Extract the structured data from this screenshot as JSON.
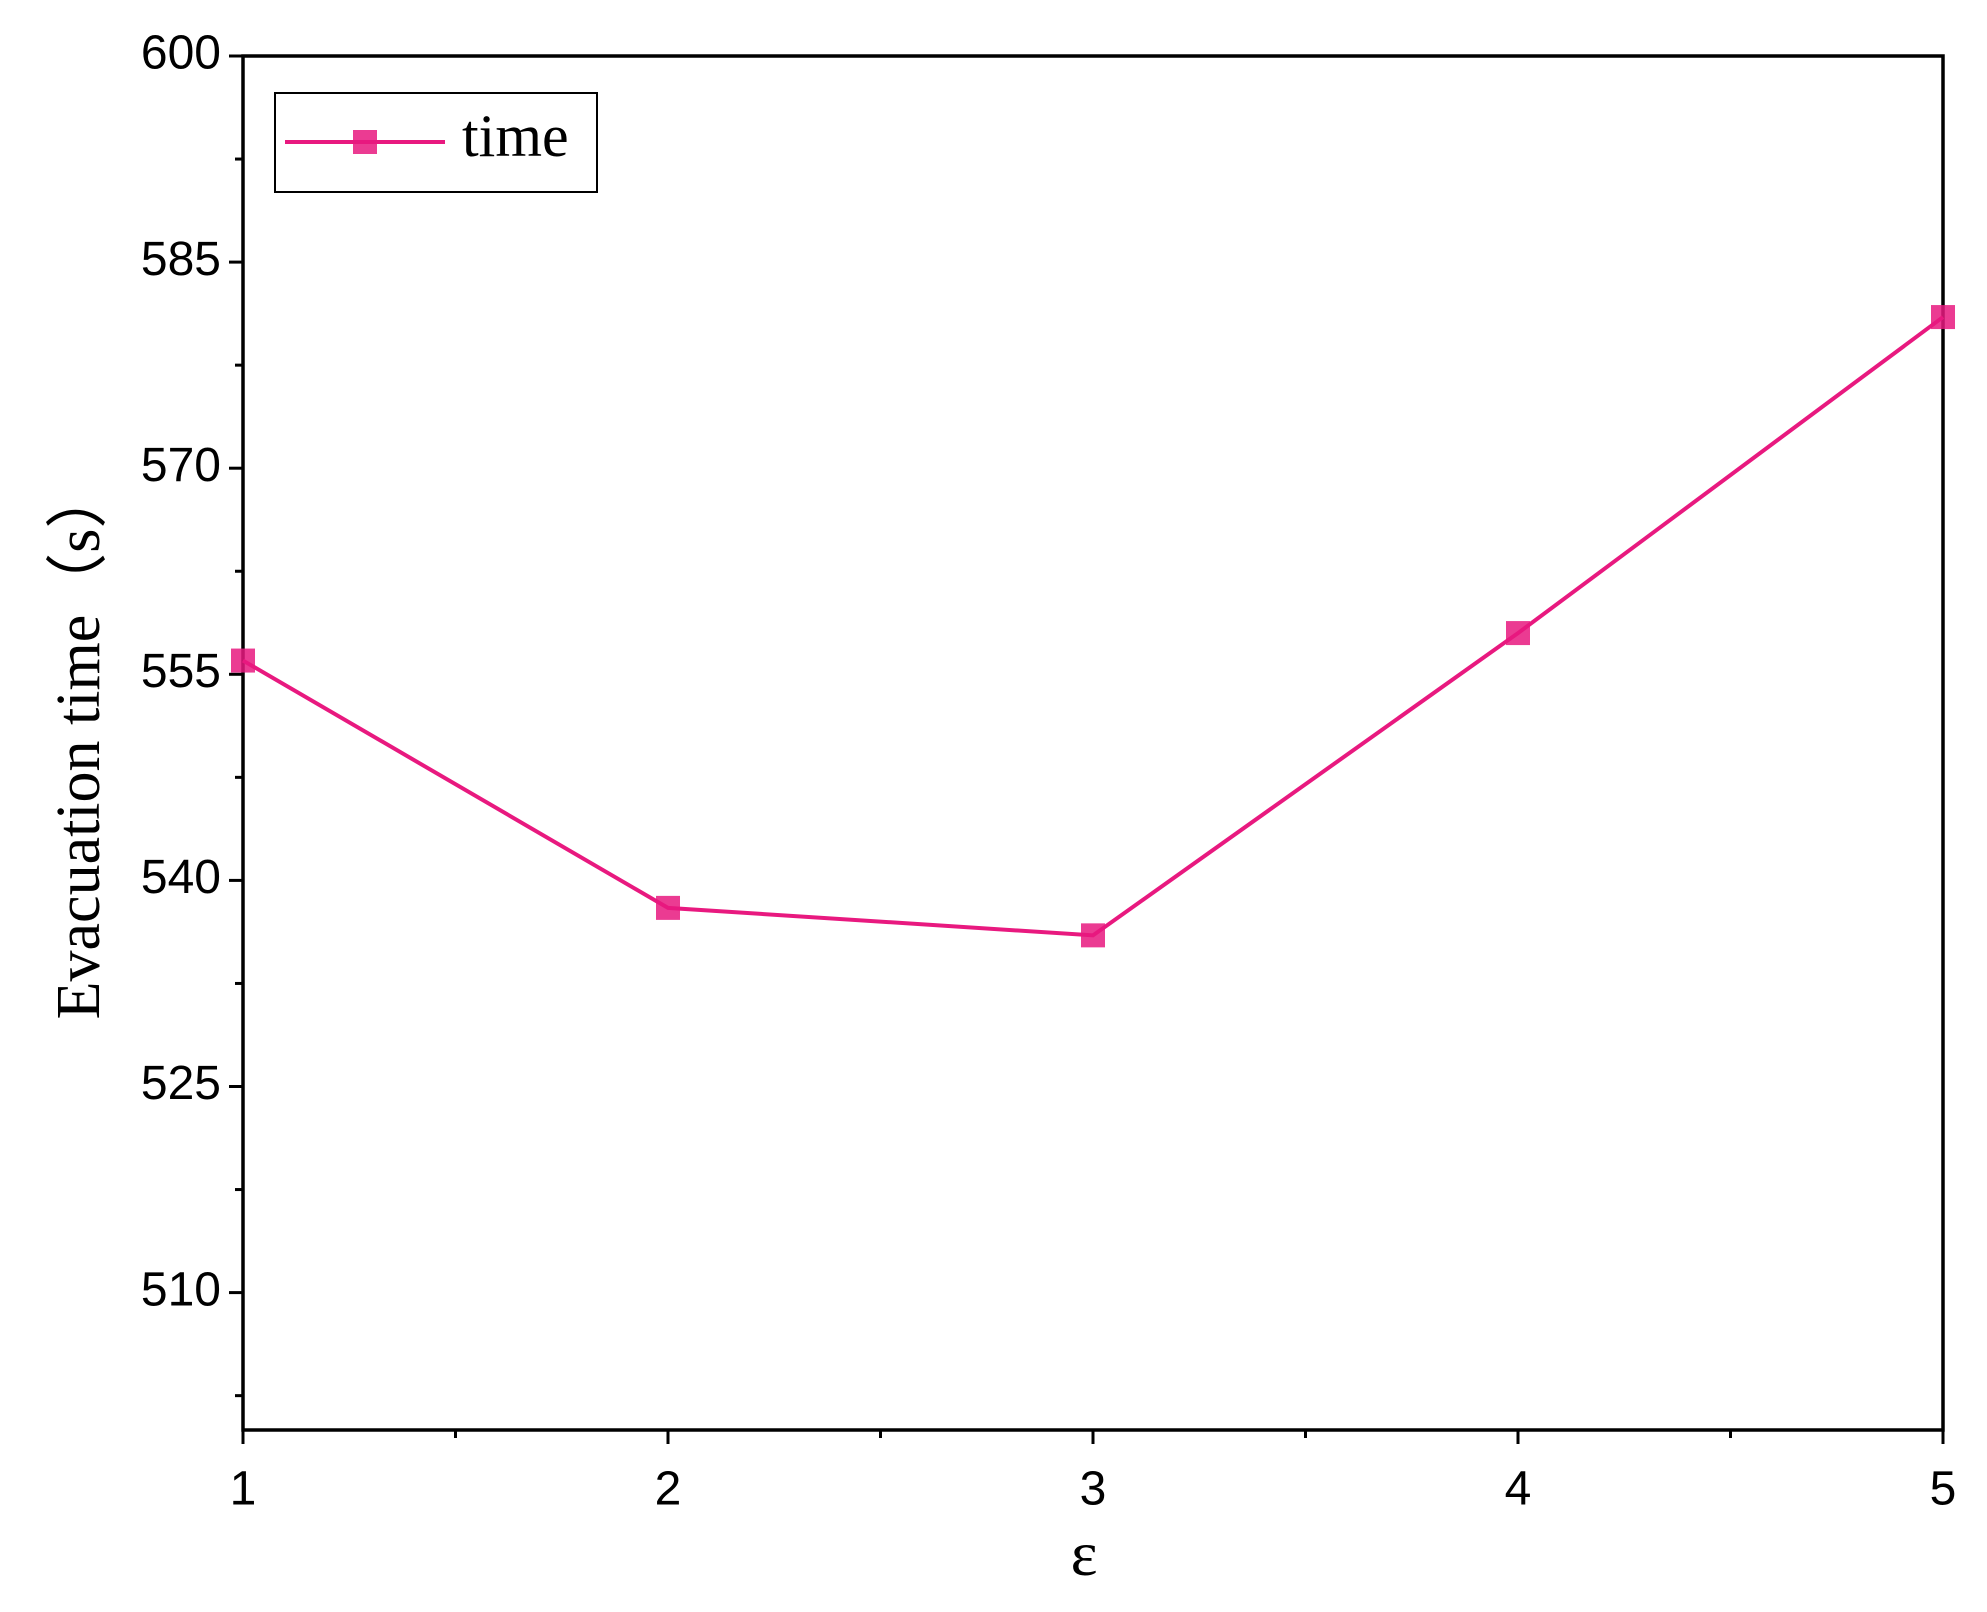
{
  "chart_data": {
    "type": "line",
    "x_label": "ε",
    "y_label": "Evacuation time（s）",
    "x": [
      1,
      2,
      3,
      4,
      5
    ],
    "series": [
      {
        "name": "time",
        "color": "#e8197f",
        "values": [
          556,
          538,
          536,
          558,
          581
        ]
      }
    ],
    "xlim": [
      1,
      5
    ],
    "xticks": [
      1,
      2,
      3,
      4,
      5
    ],
    "ylim": [
      500,
      600
    ],
    "yticks": [
      510,
      525,
      540,
      555,
      570,
      585,
      600
    ],
    "grid": false,
    "legend": "upper-left"
  }
}
